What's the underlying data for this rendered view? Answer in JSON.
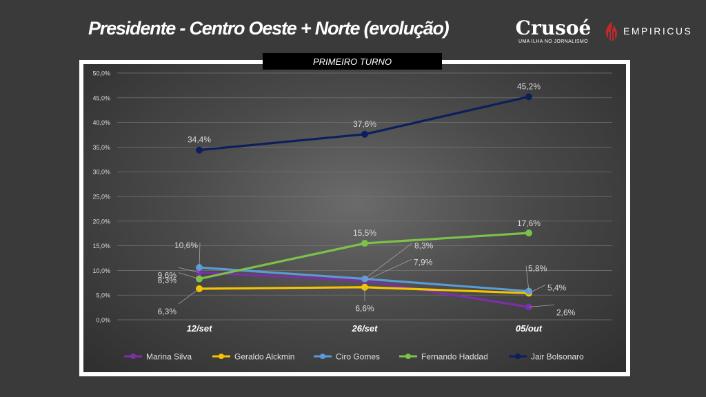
{
  "title": "Presidente - Centro Oeste + Norte (evolução)",
  "brand": {
    "crusoe_name": "Crusoé",
    "crusoe_tagline": "UMA ILHA NO JORNALISMO",
    "empiricus_name": "EMPIRICUS"
  },
  "colors": {
    "background": "#3a3a3a",
    "frame": "#ffffff",
    "banner": "#000000"
  },
  "chart_data": {
    "type": "line",
    "subtitle": "PRIMEIRO TURNO",
    "categories": [
      "12/set",
      "26/set",
      "05/out"
    ],
    "ylim": [
      0,
      50
    ],
    "y_ticks": [
      0,
      5,
      10,
      15,
      20,
      25,
      30,
      35,
      40,
      45,
      50
    ],
    "y_tick_labels": [
      "0,0%",
      "5,0%",
      "10,0%",
      "15,0%",
      "20,0%",
      "25,0%",
      "30,0%",
      "35,0%",
      "40,0%",
      "45,0%",
      "50,0%"
    ],
    "grid": true,
    "legend_position": "bottom",
    "series": [
      {
        "name": "Marina Silva",
        "color": "#7b2fa8",
        "values": [
          9.6,
          7.9,
          2.6
        ],
        "labels": [
          "9,6%",
          "7,9%",
          "2,6%"
        ]
      },
      {
        "name": "Geraldo Alckmin",
        "color": "#f5c400",
        "values": [
          6.3,
          6.6,
          5.4
        ],
        "labels": [
          "6,3%",
          "6,6%",
          "5,4%"
        ]
      },
      {
        "name": "Ciro Gomes",
        "color": "#5b9bd5",
        "values": [
          10.6,
          8.3,
          5.8
        ],
        "labels": [
          "10,6%",
          "8,3%",
          "5,8%"
        ]
      },
      {
        "name": "Fernando Haddad",
        "color": "#7cc14a",
        "values": [
          8.3,
          15.5,
          17.6
        ],
        "labels": [
          "8,3%",
          "15,5%",
          "17,6%"
        ]
      },
      {
        "name": "Jair Bolsonaro",
        "color": "#0b1f5c",
        "values": [
          34.4,
          37.6,
          45.2
        ],
        "labels": [
          "34,4%",
          "37,6%",
          "45,2%"
        ]
      }
    ]
  }
}
